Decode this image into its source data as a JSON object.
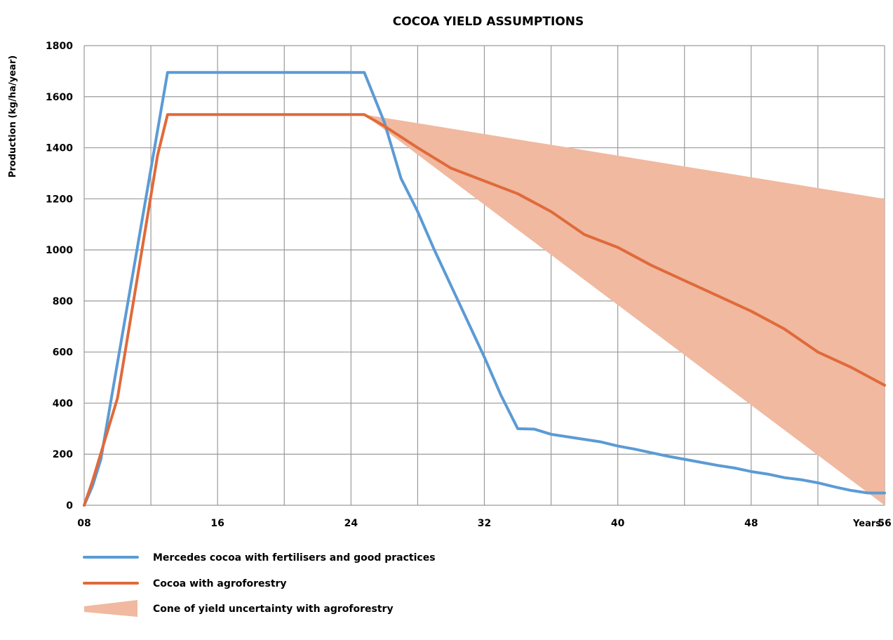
{
  "chart_data": {
    "type": "line",
    "title": "COCOA YIELD ASSUMPTIONS",
    "xlabel": "Years",
    "ylabel": "Production (kg/ha/year)",
    "xlim": [
      8,
      56
    ],
    "ylim": [
      0,
      1800
    ],
    "x_ticks": [
      8,
      12,
      16,
      20,
      24,
      28,
      32,
      36,
      40,
      44,
      48,
      52,
      56
    ],
    "x_tick_labels": [
      "08",
      "",
      "16",
      "",
      "24",
      "",
      "32",
      "",
      "40",
      "",
      "48",
      "",
      "56"
    ],
    "y_ticks": [
      0,
      200,
      400,
      600,
      800,
      1000,
      1200,
      1400,
      1600,
      1800
    ],
    "y_tick_labels": [
      "0",
      "200",
      "400",
      "600",
      "800",
      "1000",
      "1200",
      "1400",
      "1600",
      "1800"
    ],
    "grid": true,
    "legend_position": "bottom-left",
    "series": [
      {
        "name": "Mercedes cocoa with fertilisers and good practices",
        "style": "line",
        "color": "#5B9BD5",
        "x": [
          8,
          8.5,
          9,
          13,
          24.8,
          26,
          27,
          28,
          29,
          30,
          31,
          32,
          33,
          34,
          35,
          36,
          37,
          38,
          39,
          40,
          41,
          42,
          43,
          44,
          45,
          46,
          47,
          48,
          49,
          50,
          51,
          52,
          53,
          54,
          55,
          56
        ],
        "y": [
          0,
          75,
          180,
          1695,
          1695,
          1500,
          1280,
          1150,
          1000,
          860,
          720,
          580,
          430,
          300,
          298,
          278,
          268,
          258,
          248,
          232,
          220,
          206,
          192,
          180,
          168,
          156,
          146,
          132,
          122,
          108,
          100,
          88,
          72,
          58,
          48,
          48
        ]
      },
      {
        "name": "Cocoa with agroforestry",
        "style": "line",
        "color": "#E06A3B",
        "x": [
          8,
          8.5,
          10,
          12.4,
          13,
          24.8,
          26,
          28,
          30,
          32,
          34,
          36,
          38,
          40,
          42,
          44,
          46,
          48,
          50,
          52,
          54,
          56
        ],
        "y": [
          0,
          95,
          420,
          1370,
          1530,
          1530,
          1485,
          1400,
          1320,
          1270,
          1220,
          1150,
          1060,
          1010,
          940,
          880,
          820,
          760,
          690,
          600,
          540,
          470
        ]
      },
      {
        "name": "Cone of yield uncertainty with agroforestry",
        "style": "area",
        "color": "#F0B9A0",
        "x": [
          24.8,
          56
        ],
        "upper": [
          1530,
          1200
        ],
        "lower": [
          1530,
          0
        ]
      }
    ]
  }
}
